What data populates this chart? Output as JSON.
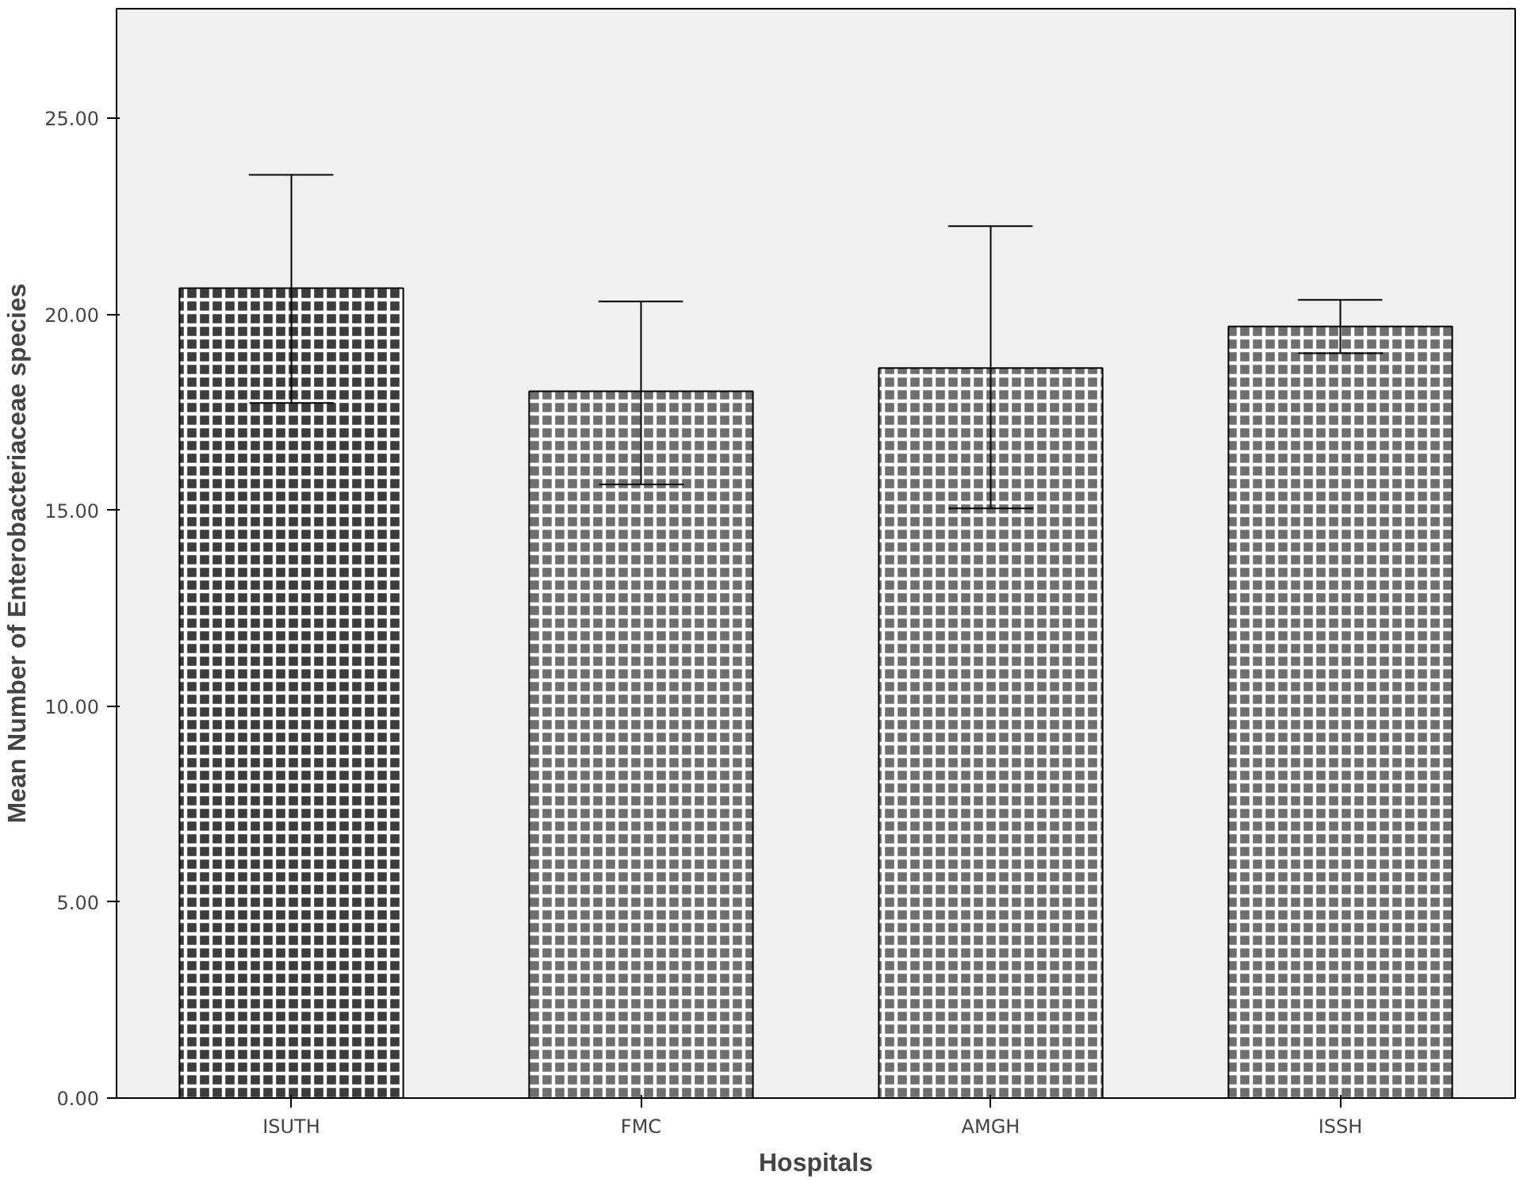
{
  "chart_data": {
    "type": "bar",
    "xlabel": "Hospitals",
    "ylabel": "Mean Number of Enterobacteriaceae species",
    "categories": [
      "ISUTH",
      "FMC",
      "AMGH",
      "ISSH"
    ],
    "values": [
      20.67,
      18.04,
      18.63,
      19.69
    ],
    "errors": [
      [
        17.74,
        23.56
      ],
      [
        15.66,
        20.33
      ],
      [
        15.05,
        22.25
      ],
      [
        19.01,
        20.37
      ]
    ],
    "colors": [
      "#3c3c3c",
      "#6e6e6e",
      "#6e6e6e",
      "#6e6e6e"
    ],
    "ylim": [
      0,
      27.8
    ],
    "yticks": [
      {
        "value": 0,
        "label": "0.00"
      },
      {
        "value": 5,
        "label": "5.00"
      },
      {
        "value": 10,
        "label": "10.00"
      },
      {
        "value": 15,
        "label": "15.00"
      },
      {
        "value": 20,
        "label": "20.00"
      },
      {
        "value": 25,
        "label": "25.00"
      }
    ],
    "grid": false
  }
}
